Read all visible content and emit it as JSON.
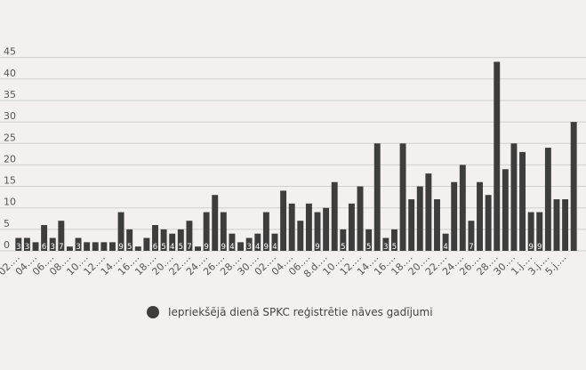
{
  "chart_data": {
    "type": "bar",
    "y_ticks": [
      0,
      5,
      10,
      15,
      20,
      25,
      30,
      35,
      40,
      45
    ],
    "ylim": [
      0,
      47
    ],
    "grid": true,
    "bar_color": "#3d3d3d",
    "values": [
      3,
      3,
      2,
      6,
      3,
      7,
      1,
      3,
      2,
      2,
      2,
      2,
      9,
      5,
      1,
      3,
      6,
      5,
      4,
      5,
      7,
      1,
      9,
      13,
      9,
      4,
      2,
      3,
      4,
      9,
      4,
      14,
      11,
      7,
      11,
      9,
      10,
      16,
      5,
      11,
      15,
      5,
      25,
      3,
      5,
      25,
      12,
      15,
      18,
      12,
      4,
      16,
      20,
      7,
      16,
      13,
      44,
      19,
      25,
      23,
      9,
      9,
      24,
      12,
      12,
      30
    ],
    "value_labels": [
      "3",
      "3",
      "",
      "6",
      "3",
      "7",
      "",
      "3",
      "",
      "",
      "",
      "",
      "9",
      "5",
      "",
      "",
      "6",
      "5",
      "4",
      "5",
      "7",
      "",
      "9",
      "",
      "9",
      "4",
      "",
      "3",
      "4",
      "9",
      "4",
      "",
      "",
      "",
      "",
      "9",
      "",
      "",
      "5",
      "",
      "",
      "5",
      "",
      "3",
      "5",
      "",
      "",
      "",
      "",
      "",
      "4",
      "",
      "",
      "7",
      "",
      "",
      "",
      "",
      "",
      "",
      "9",
      "9",
      "",
      "",
      "",
      ""
    ],
    "x_tick_labels": [
      "02.…",
      "04.…",
      "06.…",
      "08.…",
      "10.…",
      "12.…",
      "14.…",
      "16.…",
      "18.…",
      "20.…",
      "22.…",
      "24.…",
      "26.…",
      "28.…",
      "30.…",
      "02.…",
      "04.…",
      "06.…",
      "8.d.…",
      "10.…",
      "12.…",
      "14.…",
      "16.…",
      "18.…",
      "20.…",
      "22.…",
      "24.…",
      "26.…",
      "28.…",
      "30.…",
      "1.j.…",
      "3.j.…",
      "5.j.…"
    ],
    "legend": [
      {
        "name": "Iepriekšējā dienā SPKC reģistrētie nāves gadījumi",
        "color": "#3d3d3d",
        "position": "bottom"
      }
    ]
  }
}
